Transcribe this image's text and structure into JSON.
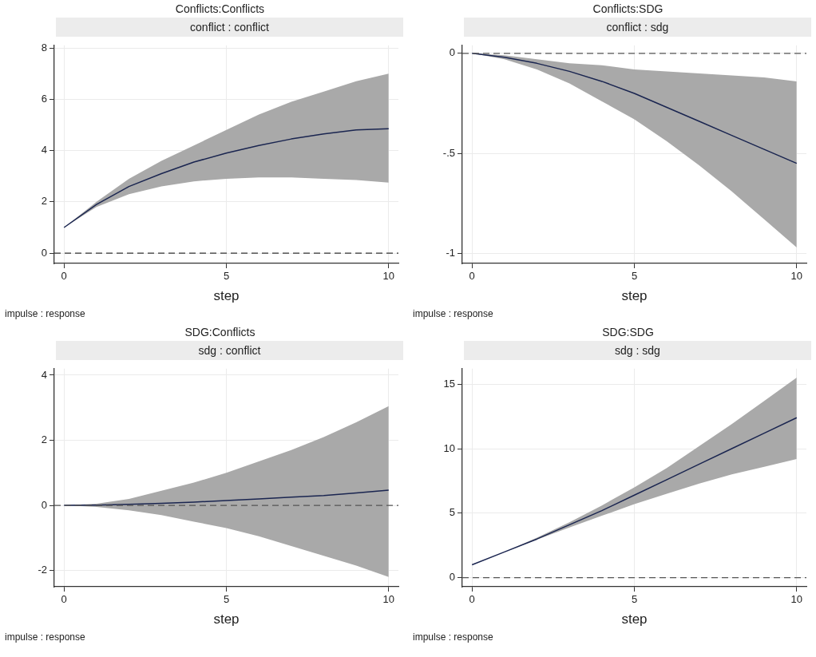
{
  "chart_data": [
    {
      "type": "line",
      "title": "Conflicts:Conflicts",
      "subtitle": "conflict : conflict",
      "xlabel": "step",
      "annotations": [
        "impulse : response"
      ],
      "x": [
        0,
        1,
        2,
        3,
        4,
        5,
        6,
        7,
        8,
        9,
        10
      ],
      "series": [
        {
          "color": "#1a2550",
          "values": [
            1,
            1.9,
            2.6,
            3.1,
            3.55,
            3.9,
            4.2,
            4.45,
            4.65,
            4.8,
            4.85
          ],
          "lower": [
            1,
            1.8,
            2.3,
            2.6,
            2.8,
            2.9,
            2.95,
            2.95,
            2.9,
            2.85,
            2.75
          ],
          "upper": [
            1,
            2.0,
            2.9,
            3.6,
            4.2,
            4.8,
            5.4,
            5.9,
            6.3,
            6.7,
            7.0
          ]
        }
      ],
      "xlim": [
        -0.3,
        10.3
      ],
      "xticks": [
        0,
        5,
        10
      ],
      "ylim": [
        -0.4,
        8.1
      ],
      "yticks": [
        0,
        2,
        4,
        6,
        8
      ],
      "grid": true,
      "ref_lines": [
        {
          "axis": "y",
          "value": 0,
          "color": "#333333",
          "line_style": "dashed"
        }
      ]
    },
    {
      "type": "line",
      "title": "Conflicts:SDG",
      "subtitle": "conflict : sdg",
      "xlabel": "step",
      "annotations": [
        "impulse : response"
      ],
      "x": [
        0,
        1,
        2,
        3,
        4,
        5,
        6,
        7,
        8,
        9,
        10
      ],
      "series": [
        {
          "color": "#1a2550",
          "values": [
            0,
            -0.02,
            -0.05,
            -0.09,
            -0.14,
            -0.2,
            -0.27,
            -0.34,
            -0.41,
            -0.48,
            -0.55
          ],
          "lower": [
            0,
            -0.03,
            -0.08,
            -0.15,
            -0.24,
            -0.33,
            -0.44,
            -0.56,
            -0.69,
            -0.83,
            -0.97
          ],
          "upper": [
            0,
            -0.01,
            -0.03,
            -0.05,
            -0.06,
            -0.08,
            -0.09,
            -0.1,
            -0.11,
            -0.12,
            -0.14
          ]
        }
      ],
      "xlim": [
        -0.3,
        10.3
      ],
      "xticks": [
        0,
        5,
        10
      ],
      "ylim": [
        -1.05,
        0.04
      ],
      "yticks": [
        {
          "value": -1,
          "label": "-1"
        },
        {
          "value": -0.5,
          "label": "-.5"
        },
        0
      ],
      "grid": true,
      "ref_lines": [
        {
          "axis": "y",
          "value": 0,
          "color": "#555555",
          "line_style": "dashed"
        }
      ]
    },
    {
      "type": "line",
      "title": "SDG:Conflicts",
      "subtitle": "sdg : conflict",
      "xlabel": "step",
      "annotations": [
        "impulse : response"
      ],
      "x": [
        0,
        1,
        2,
        3,
        4,
        5,
        6,
        7,
        8,
        9,
        10
      ],
      "series": [
        {
          "color": "#1a2550",
          "values": [
            0,
            0.01,
            0.03,
            0.06,
            0.1,
            0.15,
            0.2,
            0.25,
            0.3,
            0.38,
            0.47
          ],
          "lower": [
            0,
            -0.05,
            -0.15,
            -0.3,
            -0.5,
            -0.7,
            -0.95,
            -1.25,
            -1.55,
            -1.85,
            -2.2
          ],
          "upper": [
            0,
            0.05,
            0.2,
            0.45,
            0.7,
            1.0,
            1.35,
            1.7,
            2.1,
            2.55,
            3.05
          ]
        }
      ],
      "xlim": [
        -0.3,
        10.3
      ],
      "xticks": [
        0,
        5,
        10
      ],
      "ylim": [
        -2.5,
        4.2
      ],
      "yticks": [
        -2,
        0,
        2,
        4
      ],
      "grid": true,
      "ref_lines": [
        {
          "axis": "y",
          "value": 0,
          "color": "#555555",
          "line_style": "dashed"
        }
      ]
    },
    {
      "type": "line",
      "title": "SDG:SDG",
      "subtitle": "sdg : sdg",
      "xlabel": "step",
      "annotations": [
        "impulse : response"
      ],
      "x": [
        0,
        1,
        2,
        3,
        4,
        5,
        6,
        7,
        8,
        9,
        10
      ],
      "series": [
        {
          "color": "#1a2550",
          "values": [
            1,
            2.0,
            3.0,
            4.1,
            5.2,
            6.4,
            7.6,
            8.8,
            10.0,
            11.2,
            12.4
          ],
          "lower": [
            1,
            2.0,
            2.95,
            3.9,
            4.8,
            5.7,
            6.5,
            7.3,
            8.0,
            8.6,
            9.2
          ],
          "upper": [
            1,
            2.0,
            3.1,
            4.3,
            5.6,
            7.0,
            8.5,
            10.2,
            11.9,
            13.7,
            15.5
          ]
        }
      ],
      "xlim": [
        -0.3,
        10.3
      ],
      "xticks": [
        0,
        5,
        10
      ],
      "ylim": [
        -0.7,
        16.2
      ],
      "yticks": [
        0,
        5,
        10,
        15
      ],
      "grid": true,
      "ref_lines": [
        {
          "axis": "y",
          "value": 0,
          "color": "#555555",
          "line_style": "dashed"
        }
      ]
    }
  ]
}
